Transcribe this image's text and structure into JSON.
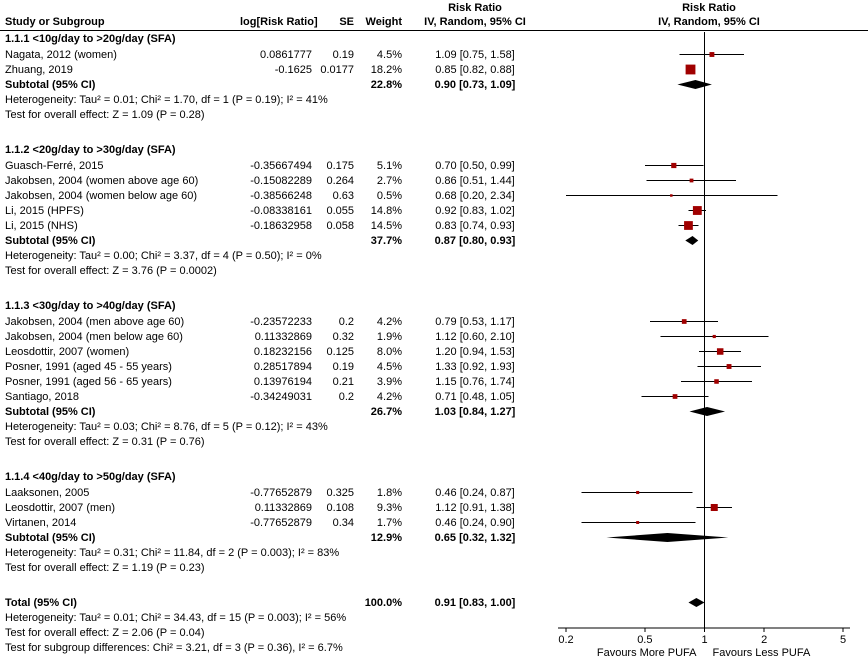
{
  "header": {
    "risk_ratio_text_col": "Risk Ratio",
    "risk_ratio_plot_col": "Risk Ratio",
    "study": "Study or Subgroup",
    "log_rr": "log[Risk Ratio]",
    "se": "SE",
    "weight": "Weight",
    "ci_method_text_col": "IV, Random, 95% CI",
    "ci_method_plot_col": "IV, Random, 95% CI"
  },
  "chart_data": {
    "type": "forest",
    "effect_measure": "Risk Ratio",
    "model": "IV, Random, 95% CI",
    "axis": {
      "scale": "log",
      "min": 0.2,
      "max": 5,
      "tick_values": [
        0.2,
        0.5,
        1,
        2,
        5
      ],
      "tick_labels": [
        "0.2",
        "0.5",
        "1",
        "2",
        "5"
      ],
      "favours_left": "Favours More PUFA",
      "favours_right": "Favours Less PUFA"
    },
    "colors": {
      "marker": "#A00000",
      "diamond": "#000000",
      "line": "#000000"
    },
    "subgroups": [
      {
        "title": "1.1.1 <10g/day to >20g/day (SFA)",
        "studies": [
          {
            "name": "Nagata, 2012 (women)",
            "log_rr": "0.0861777",
            "se": "0.19",
            "weight": "4.5%",
            "weight_pct": 4.5,
            "ci_text": "1.09 [0.75, 1.58]",
            "rr": 1.09,
            "lo": 0.75,
            "hi": 1.58
          },
          {
            "name": "Zhuang, 2019",
            "log_rr": "-0.1625",
            "se": "0.0177",
            "weight": "18.2%",
            "weight_pct": 18.2,
            "ci_text": "0.85 [0.82, 0.88]",
            "rr": 0.85,
            "lo": 0.82,
            "hi": 0.88
          }
        ],
        "subtotal": {
          "label": "Subtotal (95% CI)",
          "weight": "22.8%",
          "ci_text": "0.90 [0.73, 1.09]",
          "rr": 0.9,
          "lo": 0.73,
          "hi": 1.09
        },
        "heterogeneity": "Heterogeneity: Tau² = 0.01; Chi² = 1.70, df = 1 (P = 0.19); I² = 41%",
        "overall_effect": "Test for overall effect: Z = 1.09 (P = 0.28)"
      },
      {
        "title": "1.1.2 <20g/day to >30g/day (SFA)",
        "studies": [
          {
            "name": "Guasch-Ferré, 2015",
            "log_rr": "-0.35667494",
            "se": "0.175",
            "weight": "5.1%",
            "weight_pct": 5.1,
            "ci_text": "0.70 [0.50, 0.99]",
            "rr": 0.7,
            "lo": 0.5,
            "hi": 0.99
          },
          {
            "name": "Jakobsen, 2004 (women above age 60)",
            "log_rr": "-0.15082289",
            "se": "0.264",
            "weight": "2.7%",
            "weight_pct": 2.7,
            "ci_text": "0.86 [0.51, 1.44]",
            "rr": 0.86,
            "lo": 0.51,
            "hi": 1.44
          },
          {
            "name": "Jakobsen, 2004 (women below age 60)",
            "log_rr": "-0.38566248",
            "se": "0.63",
            "weight": "0.5%",
            "weight_pct": 0.5,
            "ci_text": "0.68 [0.20, 2.34]",
            "rr": 0.68,
            "lo": 0.2,
            "hi": 2.34
          },
          {
            "name": "Li, 2015 (HPFS)",
            "log_rr": "-0.08338161",
            "se": "0.055",
            "weight": "14.8%",
            "weight_pct": 14.8,
            "ci_text": "0.92 [0.83, 1.02]",
            "rr": 0.92,
            "lo": 0.83,
            "hi": 1.02
          },
          {
            "name": "Li, 2015 (NHS)",
            "log_rr": "-0.18632958",
            "se": "0.058",
            "weight": "14.5%",
            "weight_pct": 14.5,
            "ci_text": "0.83 [0.74, 0.93]",
            "rr": 0.83,
            "lo": 0.74,
            "hi": 0.93
          }
        ],
        "subtotal": {
          "label": "Subtotal (95% CI)",
          "weight": "37.7%",
          "ci_text": "0.87 [0.80, 0.93]",
          "rr": 0.87,
          "lo": 0.8,
          "hi": 0.93
        },
        "heterogeneity": "Heterogeneity: Tau² = 0.00; Chi² = 3.37, df = 4 (P = 0.50); I² = 0%",
        "overall_effect": "Test for overall effect: Z = 3.76 (P = 0.0002)"
      },
      {
        "title": "1.1.3 <30g/day to >40g/day (SFA)",
        "studies": [
          {
            "name": "Jakobsen, 2004 (men above age 60)",
            "log_rr": "-0.23572233",
            "se": "0.2",
            "weight": "4.2%",
            "weight_pct": 4.2,
            "ci_text": "0.79 [0.53, 1.17]",
            "rr": 0.79,
            "lo": 0.53,
            "hi": 1.17
          },
          {
            "name": "Jakobsen, 2004 (men below age 60)",
            "log_rr": "0.11332869",
            "se": "0.32",
            "weight": "1.9%",
            "weight_pct": 1.9,
            "ci_text": "1.12 [0.60, 2.10]",
            "rr": 1.12,
            "lo": 0.6,
            "hi": 2.1
          },
          {
            "name": "Leosdottir, 2007 (women)",
            "log_rr": "0.18232156",
            "se": "0.125",
            "weight": "8.0%",
            "weight_pct": 8.0,
            "ci_text": "1.20 [0.94, 1.53]",
            "rr": 1.2,
            "lo": 0.94,
            "hi": 1.53
          },
          {
            "name": "Posner, 1991 (aged 45 - 55 years)",
            "log_rr": "0.28517894",
            "se": "0.19",
            "weight": "4.5%",
            "weight_pct": 4.5,
            "ci_text": "1.33 [0.92, 1.93]",
            "rr": 1.33,
            "lo": 0.92,
            "hi": 1.93
          },
          {
            "name": "Posner, 1991 (aged 56 - 65 years)",
            "log_rr": "0.13976194",
            "se": "0.21",
            "weight": "3.9%",
            "weight_pct": 3.9,
            "ci_text": "1.15 [0.76, 1.74]",
            "rr": 1.15,
            "lo": 0.76,
            "hi": 1.74
          },
          {
            "name": "Santiago, 2018",
            "log_rr": "-0.34249031",
            "se": "0.2",
            "weight": "4.2%",
            "weight_pct": 4.2,
            "ci_text": "0.71 [0.48, 1.05]",
            "rr": 0.71,
            "lo": 0.48,
            "hi": 1.05
          }
        ],
        "subtotal": {
          "label": "Subtotal (95% CI)",
          "weight": "26.7%",
          "ci_text": "1.03 [0.84, 1.27]",
          "rr": 1.03,
          "lo": 0.84,
          "hi": 1.27
        },
        "heterogeneity": "Heterogeneity: Tau² = 0.03; Chi² = 8.76, df = 5 (P = 0.12); I² = 43%",
        "overall_effect": "Test for overall effect: Z = 0.31 (P = 0.76)"
      },
      {
        "title": "1.1.4 <40g/day to >50g/day (SFA)",
        "studies": [
          {
            "name": "Laaksonen, 2005",
            "log_rr": "-0.77652879",
            "se": "0.325",
            "weight": "1.8%",
            "weight_pct": 1.8,
            "ci_text": "0.46 [0.24, 0.87]",
            "rr": 0.46,
            "lo": 0.24,
            "hi": 0.87
          },
          {
            "name": "Leosdottir, 2007 (men)",
            "log_rr": "0.11332869",
            "se": "0.108",
            "weight": "9.3%",
            "weight_pct": 9.3,
            "ci_text": "1.12 [0.91, 1.38]",
            "rr": 1.12,
            "lo": 0.91,
            "hi": 1.38
          },
          {
            "name": "Virtanen, 2014",
            "log_rr": "-0.77652879",
            "se": "0.34",
            "weight": "1.7%",
            "weight_pct": 1.7,
            "ci_text": "0.46 [0.24, 0.90]",
            "rr": 0.46,
            "lo": 0.24,
            "hi": 0.9
          }
        ],
        "subtotal": {
          "label": "Subtotal (95% CI)",
          "weight": "12.9%",
          "ci_text": "0.65 [0.32, 1.32]",
          "rr": 0.65,
          "lo": 0.32,
          "hi": 1.32
        },
        "heterogeneity": "Heterogeneity: Tau² = 0.31; Chi² = 11.84, df = 2 (P = 0.003); I² = 83%",
        "overall_effect": "Test for overall effect: Z = 1.19 (P = 0.23)"
      }
    ],
    "total": {
      "label": "Total (95% CI)",
      "weight": "100.0%",
      "ci_text": "0.91 [0.83, 1.00]",
      "rr": 0.91,
      "lo": 0.83,
      "hi": 1.0,
      "heterogeneity": "Heterogeneity: Tau² = 0.01; Chi² = 34.43, df = 15 (P = 0.003); I² = 56%",
      "overall_effect": "Test for overall effect: Z = 2.06 (P = 0.04)",
      "subgroup_differences": "Test for subgroup differences: Chi² = 3.21, df = 3 (P = 0.36), I² = 6.7%"
    }
  }
}
